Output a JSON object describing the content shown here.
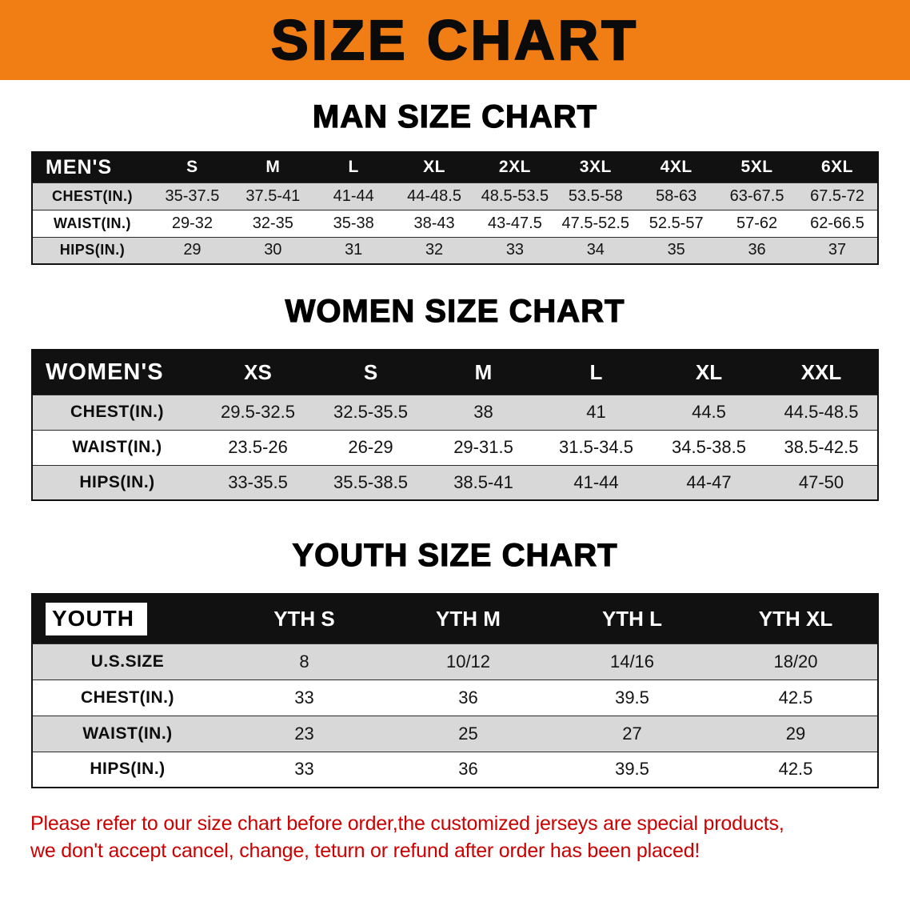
{
  "banner": {
    "title": "SIZE CHART"
  },
  "tables": {
    "men": {
      "heading": "MAN SIZE CHART",
      "header": [
        "MEN'S",
        "S",
        "M",
        "L",
        "XL",
        "2XL",
        "3XL",
        "4XL",
        "5XL",
        "6XL"
      ],
      "rows": [
        [
          "CHEST(IN.)",
          "35-37.5",
          "37.5-41",
          "41-44",
          "44-48.5",
          "48.5-53.5",
          "53.5-58",
          "58-63",
          "63-67.5",
          "67.5-72"
        ],
        [
          "WAIST(IN.)",
          "29-32",
          "32-35",
          "35-38",
          "38-43",
          "43-47.5",
          "47.5-52.5",
          "52.5-57",
          "57-62",
          "62-66.5"
        ],
        [
          "HIPS(IN.)",
          "29",
          "30",
          "31",
          "32",
          "33",
          "34",
          "35",
          "36",
          "37"
        ]
      ]
    },
    "women": {
      "heading": "WOMEN SIZE CHART",
      "header": [
        "WOMEN'S",
        "XS",
        "S",
        "M",
        "L",
        "XL",
        "XXL"
      ],
      "rows": [
        [
          "CHEST(IN.)",
          "29.5-32.5",
          "32.5-35.5",
          "38",
          "41",
          "44.5",
          "44.5-48.5"
        ],
        [
          "WAIST(IN.)",
          "23.5-26",
          "26-29",
          "29-31.5",
          "31.5-34.5",
          "34.5-38.5",
          "38.5-42.5"
        ],
        [
          "HIPS(IN.)",
          "33-35.5",
          "35.5-38.5",
          "38.5-41",
          "41-44",
          "44-47",
          "47-50"
        ]
      ]
    },
    "youth": {
      "heading": "YOUTH SIZE CHART",
      "header": [
        "YOUTH",
        "YTH S",
        "YTH M",
        "YTH L",
        "YTH XL"
      ],
      "rows": [
        [
          "U.S.SIZE",
          "8",
          "10/12",
          "14/16",
          "18/20"
        ],
        [
          "CHEST(IN.)",
          "33",
          "36",
          "39.5",
          "42.5"
        ],
        [
          "WAIST(IN.)",
          "23",
          "25",
          "27",
          "29"
        ],
        [
          "HIPS(IN.)",
          "33",
          "36",
          "39.5",
          "42.5"
        ]
      ]
    }
  },
  "disclaimer": {
    "line1": "Please refer to our size chart before order,the customized jerseys are special products,",
    "line2": "we don't accept cancel, change, teturn or refund after order has been placed!"
  },
  "colors": {
    "banner_bg": "#F07E14",
    "header_bg": "#111111",
    "stripe": "#D8D8D8",
    "disclaimer_color": "#CC0000"
  }
}
